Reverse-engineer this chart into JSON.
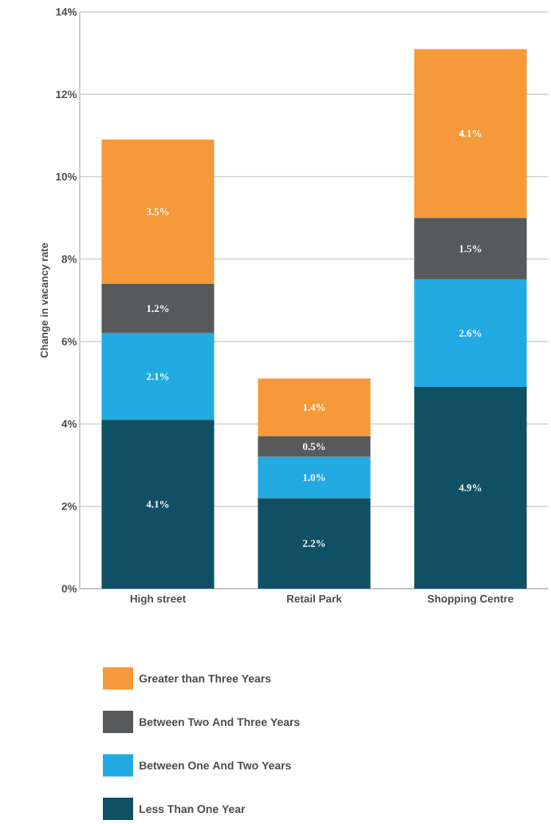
{
  "chart_data": {
    "type": "bar",
    "stacked": true,
    "ylabel": "Change in vacancy rate",
    "categories": [
      "High street",
      "Retail Park",
      "Shopping Centre"
    ],
    "series": [
      {
        "name": "Less Than One Year",
        "color": "#0f5064",
        "values": [
          4.1,
          2.2,
          4.9
        ],
        "value_labels": [
          "4.1%",
          "2.2%",
          "4.9%"
        ]
      },
      {
        "name": "Between One And Two Years",
        "color": "#22aae2",
        "values": [
          2.1,
          1.0,
          2.6
        ],
        "value_labels": [
          "2.1%",
          "1.0%",
          "2.6%"
        ]
      },
      {
        "name": "Between Two And Three Years",
        "color": "#58595b",
        "values": [
          1.2,
          0.5,
          1.5
        ],
        "value_labels": [
          "1.2%",
          "0.5%",
          "1.5%"
        ]
      },
      {
        "name": "Greater than Three Years",
        "color": "#f6993a",
        "values": [
          3.5,
          1.4,
          4.1
        ],
        "value_labels": [
          "3.5%",
          "1.4%",
          "4.1%"
        ]
      }
    ],
    "ylim": [
      0,
      14
    ],
    "yticks": [
      {
        "value": 0,
        "label": "0%"
      },
      {
        "value": 2,
        "label": "2%"
      },
      {
        "value": 4,
        "label": "4%"
      },
      {
        "value": 6,
        "label": "6%"
      },
      {
        "value": 8,
        "label": "8%"
      },
      {
        "value": 10,
        "label": "10%"
      },
      {
        "value": 12,
        "label": "12%"
      },
      {
        "value": 14,
        "label": "14%"
      }
    ],
    "grid": "y",
    "legend": "bottom"
  }
}
